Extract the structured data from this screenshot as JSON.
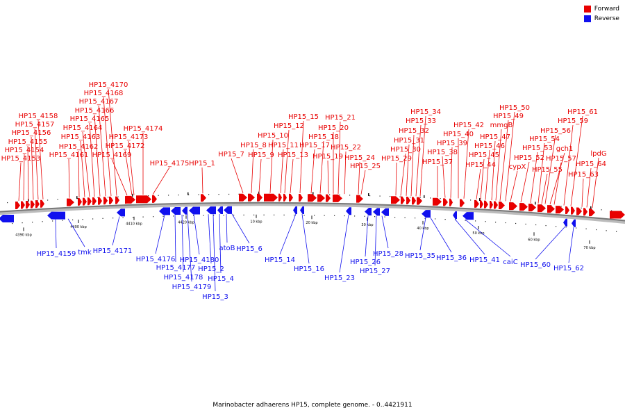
{
  "colors": {
    "forward": "#e80000",
    "reverse": "#1010ee",
    "backbone": "#888888"
  },
  "legend": [
    {
      "label": "Forward",
      "color": "#e80000"
    },
    {
      "label": "Reverse",
      "color": "#1010ee"
    }
  ],
  "caption": "Marinobacter adhaerens HP15, complete genome. - 0..4421911",
  "ticks": [
    "4390 kbp",
    "4400 kbp",
    "4410 kbp",
    "4420 kbp",
    "10 kbp",
    "20 kbp",
    "30 kbp",
    "40 kbp",
    "50 kbp",
    "60 kbp",
    "70 kbp"
  ],
  "forward_labels": [
    "HP15_4153",
    "HP15_4154",
    "HP15_4155",
    "HP15_4156",
    "HP15_4157",
    "HP15_4158",
    "HP15_4161",
    "HP15_4162",
    "HP15_4163",
    "HP15_4164",
    "HP15_4165",
    "HP15_4166",
    "HP15_4167",
    "HP15_4168",
    "HP15_4170",
    "HP15_4169",
    "HP15_4172",
    "HP15_4173",
    "HP15_4174",
    "HP15_4175",
    "HP15_1",
    "HP15_7",
    "HP15_8",
    "HP15_9",
    "HP15_10",
    "HP15_11",
    "HP15_12",
    "HP15_13",
    "HP15_15",
    "HP15_17",
    "HP15_18",
    "HP15_19",
    "HP15_20",
    "HP15_21",
    "HP15_22",
    "HP15_24",
    "HP15_25",
    "HP15_29",
    "HP15_30",
    "HP15_31",
    "HP15_32",
    "HP15_33",
    "HP15_34",
    "HP15_37",
    "HP15_38",
    "HP15_39",
    "HP15_40",
    "HP15_42",
    "HP15_44",
    "HP15_45",
    "HP15_46",
    "HP15_47",
    "mmgB",
    "HP15_49",
    "HP15_50",
    "cypX",
    "HP15_52",
    "HP15_53",
    "HP15_54",
    "gch1",
    "HP15_55",
    "HP15_56",
    "HP15_57",
    "HP15_59",
    "HP15_61",
    "HP15_63",
    "HP15_64",
    "lpdG"
  ],
  "reverse_labels": [
    "HP15_4159",
    "tmk",
    "HP15_4171",
    "HP15_4176",
    "HP15_4177",
    "HP15_4178",
    "HP15_4179",
    "HP15_4180",
    "HP15_2",
    "HP15_3",
    "HP15_4",
    "atoB",
    "HP15_6",
    "HP15_14",
    "HP15_16",
    "HP15_23",
    "HP15_26",
    "HP15_27",
    "HP15_28",
    "HP15_35",
    "HP15_36",
    "HP15_41",
    "caiC",
    "HP15_60",
    "HP15_62"
  ]
}
